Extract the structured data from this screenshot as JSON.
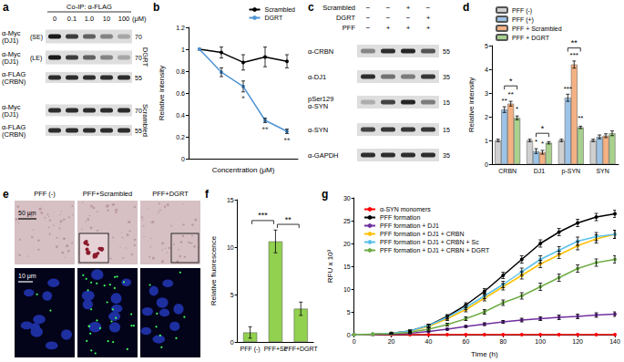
{
  "blot_a": {
    "panel": "a",
    "header": "Co-IP: α-FLAG",
    "lanes": [
      "0",
      "0.1",
      "1.0",
      "10",
      "100"
    ],
    "unit": "(μM)",
    "groups": [
      {
        "name": "DGRT",
        "rows": [
          {
            "label": [
              "α-Myc",
              "(DJ1)"
            ],
            "note": "(SE)",
            "kda": 70
          },
          {
            "label": [
              "α-Myc",
              "(DJ1)"
            ],
            "note": "(LE)",
            "kda": 70
          },
          {
            "label": [
              "α-FLAG",
              "(CRBN)"
            ],
            "kda": 55
          }
        ]
      },
      {
        "name": "Scrambled",
        "rows": [
          {
            "label": [
              "α-Myc",
              "(DJ1)"
            ],
            "kda": 70
          },
          {
            "label": [
              "α-FLAG",
              "(CRBN)"
            ],
            "kda": 55
          }
        ]
      }
    ]
  },
  "blot_c": {
    "panel": "c",
    "conditions": [
      {
        "label": "Scrambled",
        "signs": [
          "−",
          "−",
          "+",
          "−"
        ]
      },
      {
        "label": "DGRT",
        "signs": [
          "−",
          "−",
          "−",
          "+"
        ]
      },
      {
        "label": "PFF",
        "signs": [
          "−",
          "+",
          "+",
          "+"
        ]
      }
    ],
    "rows": [
      {
        "label": [
          "α-CRBN"
        ],
        "kda": 55
      },
      {
        "label": [
          "α-DJ1"
        ],
        "kda": 35
      },
      {
        "label": [
          "pSer129",
          "α-SYN"
        ],
        "kda": 15
      },
      {
        "label": [
          "α-SYN"
        ],
        "kda": 15
      },
      {
        "label": [
          "α-GAPDH"
        ],
        "kda": 35
      }
    ]
  },
  "images_e": {
    "panel": "e",
    "columns": [
      "PFF (-)",
      "PFF+Scrambled",
      "PFF+DGRT"
    ],
    "scale_bars": [
      "50 μm",
      "10 μm"
    ]
  },
  "chart_data": [
    {
      "panel": "b",
      "type": "line",
      "categories": [
        null,
        null,
        null,
        null,
        null
      ],
      "x_label": "Concentration (μM)",
      "y_label": "Relative intensity",
      "ylim": [
        0,
        1.2
      ],
      "yticks": [
        0,
        0.2,
        0.4,
        0.6,
        0.8,
        1,
        1.2
      ],
      "grid": false,
      "legend": "upper right",
      "tick_labels": "y",
      "marker": "circle",
      "series": [
        {
          "name": "Scrambled",
          "color": "#000000",
          "values": [
            1,
            0.97,
            0.88,
            0.93,
            0.89
          ],
          "errors": [
            0,
            0.05,
            0.07,
            0.09,
            0.06
          ]
        },
        {
          "name": "DGRT",
          "color": "#4f94d4",
          "values": [
            1,
            0.79,
            0.66,
            0.35,
            0.25
          ],
          "errors": [
            0,
            0.04,
            0.05,
            0.02,
            0.02
          ]
        }
      ],
      "annotations": [
        {
          "text": "*",
          "x": 2,
          "y": 0.55
        },
        {
          "text": "**",
          "x": 3,
          "y": 0.27
        },
        {
          "text": "**",
          "x": 4,
          "y": 0.17
        }
      ]
    },
    {
      "panel": "d",
      "type": "bar",
      "categories": [
        "CRBN",
        "DJ1",
        "p-SYN",
        "SYN"
      ],
      "y_label": "Relative intensity",
      "ylim": [
        0,
        5
      ],
      "yticks": [
        0,
        1,
        2,
        3,
        4,
        5
      ],
      "grid": false,
      "legend": "upper left",
      "series": [
        {
          "name": "PFF (-)",
          "color": "#d0d0d0",
          "values": [
            1,
            1,
            1,
            1
          ],
          "errors": [
            0.05,
            0.05,
            0.05,
            0.05
          ]
        },
        {
          "name": "PFF (+)",
          "color": "#9dc3e6",
          "values": [
            2.3,
            0.55,
            2.8,
            1.15
          ],
          "errors": [
            0.12,
            0.1,
            0.15,
            0.08
          ]
        },
        {
          "name": "PFF + Scrambled",
          "color": "#f4b183",
          "values": [
            2.55,
            0.5,
            4.2,
            1.2
          ],
          "errors": [
            0.1,
            0.08,
            0.15,
            0.08
          ]
        },
        {
          "name": "PFF + DGRT",
          "color": "#a9d18e",
          "values": [
            1.95,
            0.9,
            1.55,
            1.3
          ],
          "errors": [
            0.08,
            0.05,
            0.05,
            0.1
          ]
        }
      ],
      "annotations": [
        {
          "text": "**",
          "category": "CRBN",
          "series": "PFF (+)"
        },
        {
          "text": "**",
          "category": "CRBN",
          "series": "PFF + Scrambled"
        },
        {
          "text": "*",
          "category": "CRBN",
          "series": "PFF + DGRT"
        },
        {
          "text": "*",
          "category": "DJ1",
          "series": "PFF (+)"
        },
        {
          "text": "*",
          "category": "DJ1",
          "series": "PFF + Scrambled"
        },
        {
          "text": "***",
          "category": "p-SYN",
          "series": "PFF (+)"
        },
        {
          "text": "***",
          "category": "p-SYN",
          "series": "PFF + Scrambled"
        },
        {
          "text": "**",
          "category": "p-SYN",
          "series": "PFF + DGRT"
        }
      ],
      "brackets": [
        {
          "text": "*",
          "category": "CRBN",
          "from": "PFF (+)",
          "to": "PFF + DGRT",
          "y": 3.3
        },
        {
          "text": "*",
          "category": "DJ1",
          "from": "PFF (+)",
          "to": "PFF + DGRT",
          "y": 1.3
        },
        {
          "text": "**",
          "category": "p-SYN",
          "from": "PFF (+)",
          "to": "PFF + DGRT",
          "y": 4.9
        }
      ]
    },
    {
      "panel": "f",
      "type": "bar",
      "categories": [
        "PFF (-)",
        "PFF+Sc",
        "PFF+DGRT"
      ],
      "values": [
        1,
        10.6,
        3.5
      ],
      "errors": [
        0.6,
        1.2,
        0.7
      ],
      "color": "#92d050",
      "y_label": "Relative fluorescence",
      "ylim": [
        0,
        15
      ],
      "yticks": [
        0,
        5,
        10,
        15
      ],
      "grid": false,
      "brackets": [
        {
          "text": "***",
          "from": "PFF (-)",
          "to": "PFF+Sc",
          "y": 12.8
        },
        {
          "text": "**",
          "from": "PFF+Sc",
          "to": "PFF+DGRT",
          "y": 12.4
        }
      ]
    },
    {
      "panel": "g",
      "type": "line",
      "x": [
        0,
        10,
        20,
        30,
        40,
        50,
        60,
        70,
        80,
        90,
        100,
        110,
        120,
        130,
        140
      ],
      "x_label": "Time (h)",
      "y_label": "RFU x 10³",
      "xlim": [
        0,
        140
      ],
      "xticks": [
        0,
        20,
        40,
        60,
        80,
        100,
        120,
        140
      ],
      "ylim": [
        0,
        30
      ],
      "yticks": [
        0,
        5,
        10,
        15,
        20,
        25,
        30
      ],
      "grid": false,
      "legend": "upper left",
      "marker": "circle",
      "series": [
        {
          "name": "α-SYN monomers",
          "color": "#ff0000",
          "values": [
            0,
            0,
            0,
            0,
            0,
            0,
            0,
            0,
            0,
            0,
            0,
            0,
            0,
            0,
            0
          ],
          "errors": [
            0,
            0,
            0,
            0,
            0,
            0,
            0,
            0,
            0,
            0,
            0,
            0,
            0,
            0,
            0
          ]
        },
        {
          "name": "PFF formation",
          "color": "#000000",
          "values": [
            0,
            0.1,
            0.3,
            0.8,
            2,
            4,
            6.5,
            9.5,
            13,
            16.5,
            20,
            22.5,
            24.5,
            25.8,
            26.5
          ],
          "errors": [
            0,
            0,
            0.1,
            0.2,
            0.3,
            0.4,
            0.5,
            0.6,
            0.7,
            0.8,
            0.8,
            0.8,
            0.8,
            0.8,
            0.8
          ]
        },
        {
          "name": "PFF formation + DJ1",
          "color": "#7030a0",
          "values": [
            0,
            0,
            0.1,
            0.3,
            0.7,
            1.2,
            1.8,
            2.3,
            2.8,
            3.2,
            3.5,
            3.8,
            4,
            4.3,
            4.5
          ],
          "errors": [
            0,
            0,
            0,
            0.1,
            0.1,
            0.2,
            0.2,
            0.3,
            0.3,
            0.4,
            0.4,
            0.5,
            0.5,
            0.5,
            0.5
          ]
        },
        {
          "name": "PFF formation + DJ1 + CRBN",
          "color": "#ffc000",
          "values": [
            0,
            0.1,
            0.3,
            0.7,
            1.8,
            3.5,
            5.5,
            8,
            10.5,
            13,
            15.5,
            17.5,
            19.5,
            21,
            22
          ],
          "errors": [
            0,
            0,
            0.1,
            0.2,
            0.3,
            0.4,
            0.5,
            0.6,
            0.7,
            0.8,
            0.8,
            0.8,
            0.9,
            0.9,
            0.9
          ]
        },
        {
          "name": "PFF formation + DJ1 + CRBN + Sc",
          "color": "#5bc0eb",
          "values": [
            0,
            0.1,
            0.3,
            0.8,
            2,
            3.8,
            6,
            8.5,
            11,
            13.8,
            16.5,
            18.5,
            20.5,
            21.5,
            22
          ],
          "errors": [
            0,
            0,
            0.1,
            0.2,
            0.3,
            0.4,
            0.5,
            0.6,
            0.7,
            0.8,
            0.8,
            0.8,
            0.9,
            0.9,
            0.9
          ]
        },
        {
          "name": "PFF formation + DJ1 + CRBN + DGRT",
          "color": "#70ad47",
          "values": [
            0,
            0.1,
            0.2,
            0.5,
            1.2,
            2.2,
            3.5,
            5,
            7,
            8.5,
            10.5,
            12.5,
            14.5,
            15.8,
            16.5
          ],
          "errors": [
            0,
            0,
            0.1,
            0.1,
            0.2,
            0.3,
            0.4,
            0.5,
            0.6,
            0.7,
            0.8,
            0.8,
            0.8,
            0.8,
            0.8
          ]
        }
      ]
    }
  ]
}
